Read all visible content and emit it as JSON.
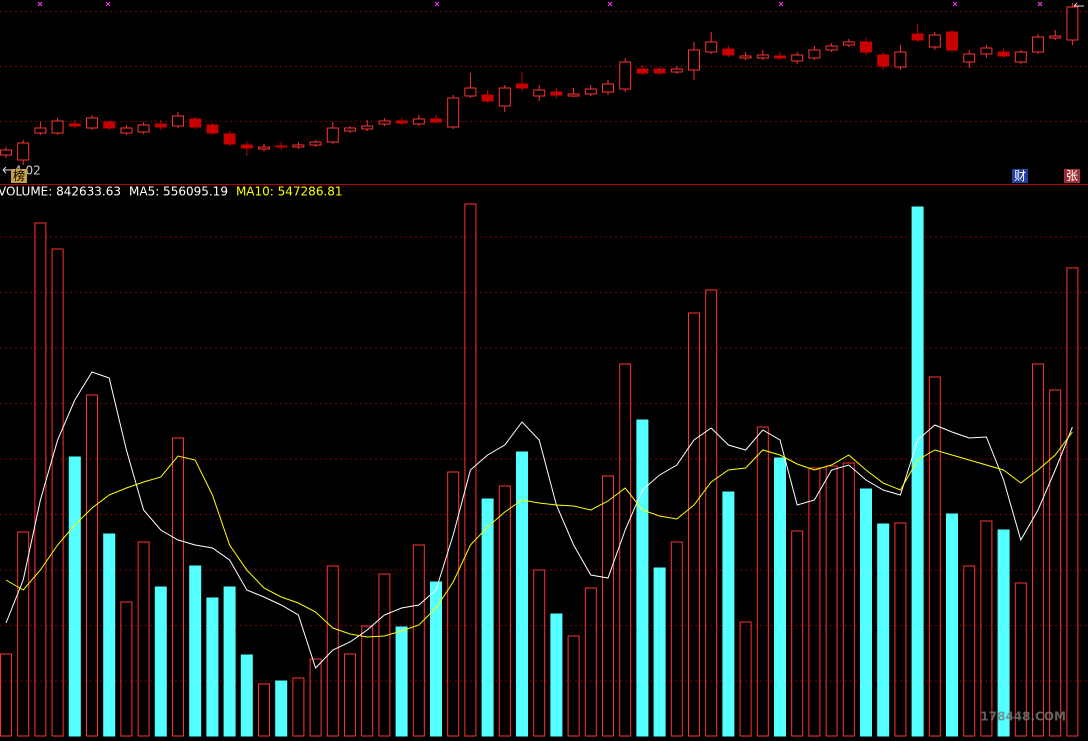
{
  "chart_data": [
    {
      "type": "candlestick",
      "ylim": [
        3.95,
        5.67
      ],
      "up_color": "#ff3232",
      "down_color": "#c80000",
      "min_label": 4.02,
      "badges": [
        "榜",
        "财",
        "张"
      ],
      "open": [
        4.12,
        4.07,
        4.34,
        4.34,
        4.43,
        4.39,
        4.45,
        4.34,
        4.35,
        4.43,
        4.41,
        4.48,
        4.42,
        4.33,
        4.22,
        4.18,
        4.21,
        4.2,
        4.22,
        4.25,
        4.36,
        4.38,
        4.43,
        4.46,
        4.43,
        4.48,
        4.4,
        4.71,
        4.72,
        4.61,
        4.83,
        4.71,
        4.75,
        4.71,
        4.73,
        4.75,
        4.78,
        4.98,
        4.98,
        4.95,
        4.97,
        5.15,
        5.18,
        5.09,
        5.09,
        5.11,
        5.06,
        5.09,
        5.17,
        5.22,
        5.25,
        5.12,
        5.0,
        5.33,
        5.2,
        5.35,
        5.05,
        5.13,
        5.15,
        5.05,
        5.15,
        5.29,
        5.27
      ],
      "high": [
        4.2,
        4.27,
        4.45,
        4.49,
        4.47,
        4.52,
        4.47,
        4.42,
        4.45,
        4.47,
        4.55,
        4.5,
        4.44,
        4.36,
        4.26,
        4.23,
        4.25,
        4.25,
        4.27,
        4.45,
        4.41,
        4.47,
        4.49,
        4.49,
        4.52,
        4.52,
        4.72,
        4.94,
        4.77,
        4.82,
        4.95,
        4.82,
        4.79,
        4.79,
        4.82,
        4.87,
        5.09,
        5.02,
        5.0,
        5.01,
        5.25,
        5.35,
        5.21,
        5.15,
        5.17,
        5.15,
        5.15,
        5.21,
        5.24,
        5.28,
        5.29,
        5.15,
        5.22,
        5.43,
        5.35,
        5.37,
        5.17,
        5.22,
        5.19,
        5.17,
        5.33,
        5.37,
        5.64
      ],
      "low": [
        4.09,
        4.02,
        4.32,
        4.32,
        4.39,
        4.37,
        4.37,
        4.32,
        4.33,
        4.37,
        4.39,
        4.38,
        4.32,
        4.21,
        4.11,
        4.16,
        4.17,
        4.18,
        4.2,
        4.23,
        4.34,
        4.36,
        4.41,
        4.42,
        4.41,
        4.43,
        4.38,
        4.69,
        4.64,
        4.55,
        4.76,
        4.66,
        4.69,
        4.7,
        4.71,
        4.72,
        4.75,
        4.92,
        4.92,
        4.93,
        4.87,
        5.13,
        5.1,
        5.07,
        5.07,
        5.07,
        5.03,
        5.07,
        5.15,
        5.2,
        5.12,
        4.97,
        4.97,
        5.25,
        5.17,
        5.15,
        4.99,
        5.09,
        5.09,
        5.03,
        5.13,
        5.27,
        5.22
      ],
      "close": [
        4.17,
        4.24,
        4.39,
        4.46,
        4.41,
        4.49,
        4.39,
        4.39,
        4.42,
        4.4,
        4.51,
        4.4,
        4.34,
        4.23,
        4.19,
        4.2,
        4.2,
        4.22,
        4.25,
        4.39,
        4.39,
        4.41,
        4.46,
        4.44,
        4.48,
        4.45,
        4.69,
        4.79,
        4.66,
        4.79,
        4.79,
        4.77,
        4.72,
        4.73,
        4.78,
        4.83,
        5.05,
        4.94,
        4.94,
        4.98,
        5.17,
        5.25,
        5.12,
        5.11,
        5.12,
        5.09,
        5.12,
        5.17,
        5.21,
        5.25,
        5.15,
        5.01,
        5.15,
        5.27,
        5.32,
        5.17,
        5.13,
        5.19,
        5.11,
        5.15,
        5.3,
        5.31,
        5.6
      ]
    },
    {
      "type": "volume",
      "ylim": [
        0,
        979200
      ],
      "up_color": "#ff3232",
      "down_color": "#54ffff",
      "watermark": "178448.COM",
      "series": [
        {
          "name": "VOLUME: 842633.63",
          "color": "#ffffff",
          "directions": [
            "up",
            "up",
            "up",
            "up",
            "down",
            "up",
            "down",
            "up",
            "up",
            "down",
            "up",
            "down",
            "down",
            "down",
            "down",
            "up",
            "down",
            "up",
            "up",
            "up",
            "up",
            "up",
            "up",
            "down",
            "up",
            "down",
            "up",
            "up",
            "down",
            "up",
            "down",
            "up",
            "down",
            "up",
            "up",
            "up",
            "up",
            "down",
            "down",
            "up",
            "up",
            "up",
            "down",
            "up",
            "up",
            "down",
            "up",
            "up",
            "up",
            "up",
            "down",
            "down",
            "up",
            "down",
            "up",
            "down",
            "up",
            "up",
            "down",
            "up",
            "up",
            "up",
            "up"
          ],
          "values": [
            147600,
            367200,
            923400,
            876600,
            502200,
            613800,
            363600,
            241200,
            349200,
            268200,
            536400,
            306000,
            248400,
            268200,
            145800,
            93600,
            99000,
            104400,
            138600,
            306000,
            147600,
            198000,
            291600,
            196200,
            343800,
            277200,
            475200,
            957600,
            426600,
            450000,
            511200,
            298800,
            219600,
            180000,
            266400,
            468000,
            669600,
            568800,
            302400,
            349200,
            761400,
            802800,
            439200,
            205200,
            556200,
            500400,
            369000,
            482400,
            486000,
            491400,
            444600,
            381600,
            383400,
            952200,
            646200,
            399600,
            306000,
            387000,
            370800,
            275400,
            669600,
            622800,
            842633.63
          ]
        },
        {
          "name": "MA5: 556095.19",
          "color": "#ffffff",
          "values": [
            203400,
            280800,
            424800,
            532800,
            604800,
            655200,
            644400,
            514800,
            406800,
            370800,
            352800,
            343800,
            338400,
            316800,
            262800,
            250200,
            235800,
            217800,
            122400,
            154800,
            169200,
            190800,
            217800,
            230400,
            235800,
            262800,
            361800,
            478800,
            505800,
            523800,
            565200,
            532800,
            415800,
            343800,
            289800,
            284400,
            370800,
            442800,
            469800,
            487800,
            532800,
            554400,
            523800,
            514800,
            550800,
            532800,
            415800,
            424800,
            478800,
            487800,
            460800,
            442800,
            433800,
            532800,
            559800,
            547200,
            536400,
            538200,
            460800,
            352800,
            406800,
            478800,
            556095.19
          ]
        },
        {
          "name": "MA10: 547286.81",
          "color": "#ffff00",
          "values": [
            280800,
            262800,
            298800,
            343800,
            379800,
            410400,
            433800,
            446400,
            457200,
            466200,
            504000,
            496800,
            433800,
            343800,
            298800,
            266400,
            250200,
            239400,
            223200,
            194400,
            183600,
            178200,
            180000,
            189000,
            199800,
            230400,
            277200,
            343800,
            376200,
            403200,
            424800,
            419400,
            415800,
            414000,
            406800,
            423000,
            446400,
            406800,
            396000,
            390600,
            415800,
            457200,
            478800,
            482400,
            514800,
            505800,
            489600,
            478800,
            487800,
            505800,
            478800,
            455400,
            442800,
            496800,
            514800,
            505800,
            496800,
            487800,
            478800,
            455400,
            478800,
            505800,
            547286.81
          ]
        }
      ]
    }
  ]
}
